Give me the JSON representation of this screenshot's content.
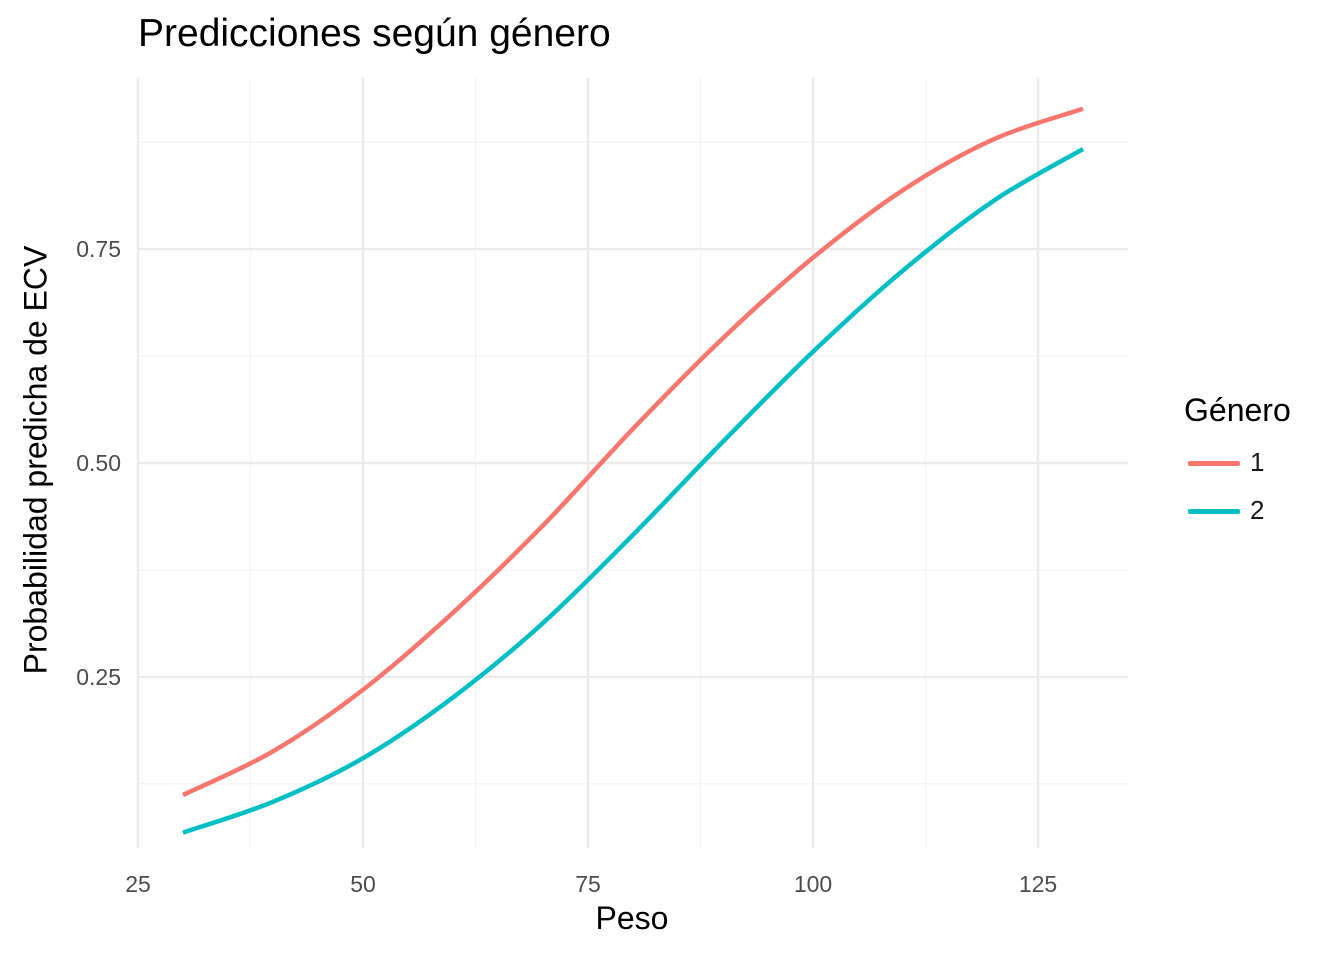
{
  "chart_data": {
    "type": "line",
    "title": "Predicciones según género",
    "xlabel": "Peso",
    "ylabel": "Probabilidad predicha de ECV",
    "xlim": [
      25,
      135
    ],
    "ylim": [
      0.05,
      0.95
    ],
    "x_ticks": [
      25,
      50,
      75,
      100,
      125
    ],
    "x_tick_labels": [
      "25",
      "50",
      "75",
      "100",
      "125"
    ],
    "y_ticks": [
      0.25,
      0.5,
      0.75
    ],
    "y_tick_labels": [
      "0.25",
      "0.50",
      "0.75"
    ],
    "grid": true,
    "legend": {
      "title": "Género",
      "position": "right"
    },
    "x": [
      30,
      40,
      50,
      60,
      70,
      80,
      90,
      100,
      110,
      120,
      130
    ],
    "series": [
      {
        "name": "1",
        "color": "#F8766D",
        "values": [
          0.112,
          0.163,
          0.235,
          0.325,
          0.427,
          0.54,
          0.646,
          0.74,
          0.819,
          0.878,
          0.914
        ]
      },
      {
        "name": "2",
        "color": "#00BFC4",
        "values": [
          0.068,
          0.104,
          0.155,
          0.226,
          0.313,
          0.416,
          0.525,
          0.63,
          0.725,
          0.806,
          0.867
        ]
      }
    ]
  }
}
